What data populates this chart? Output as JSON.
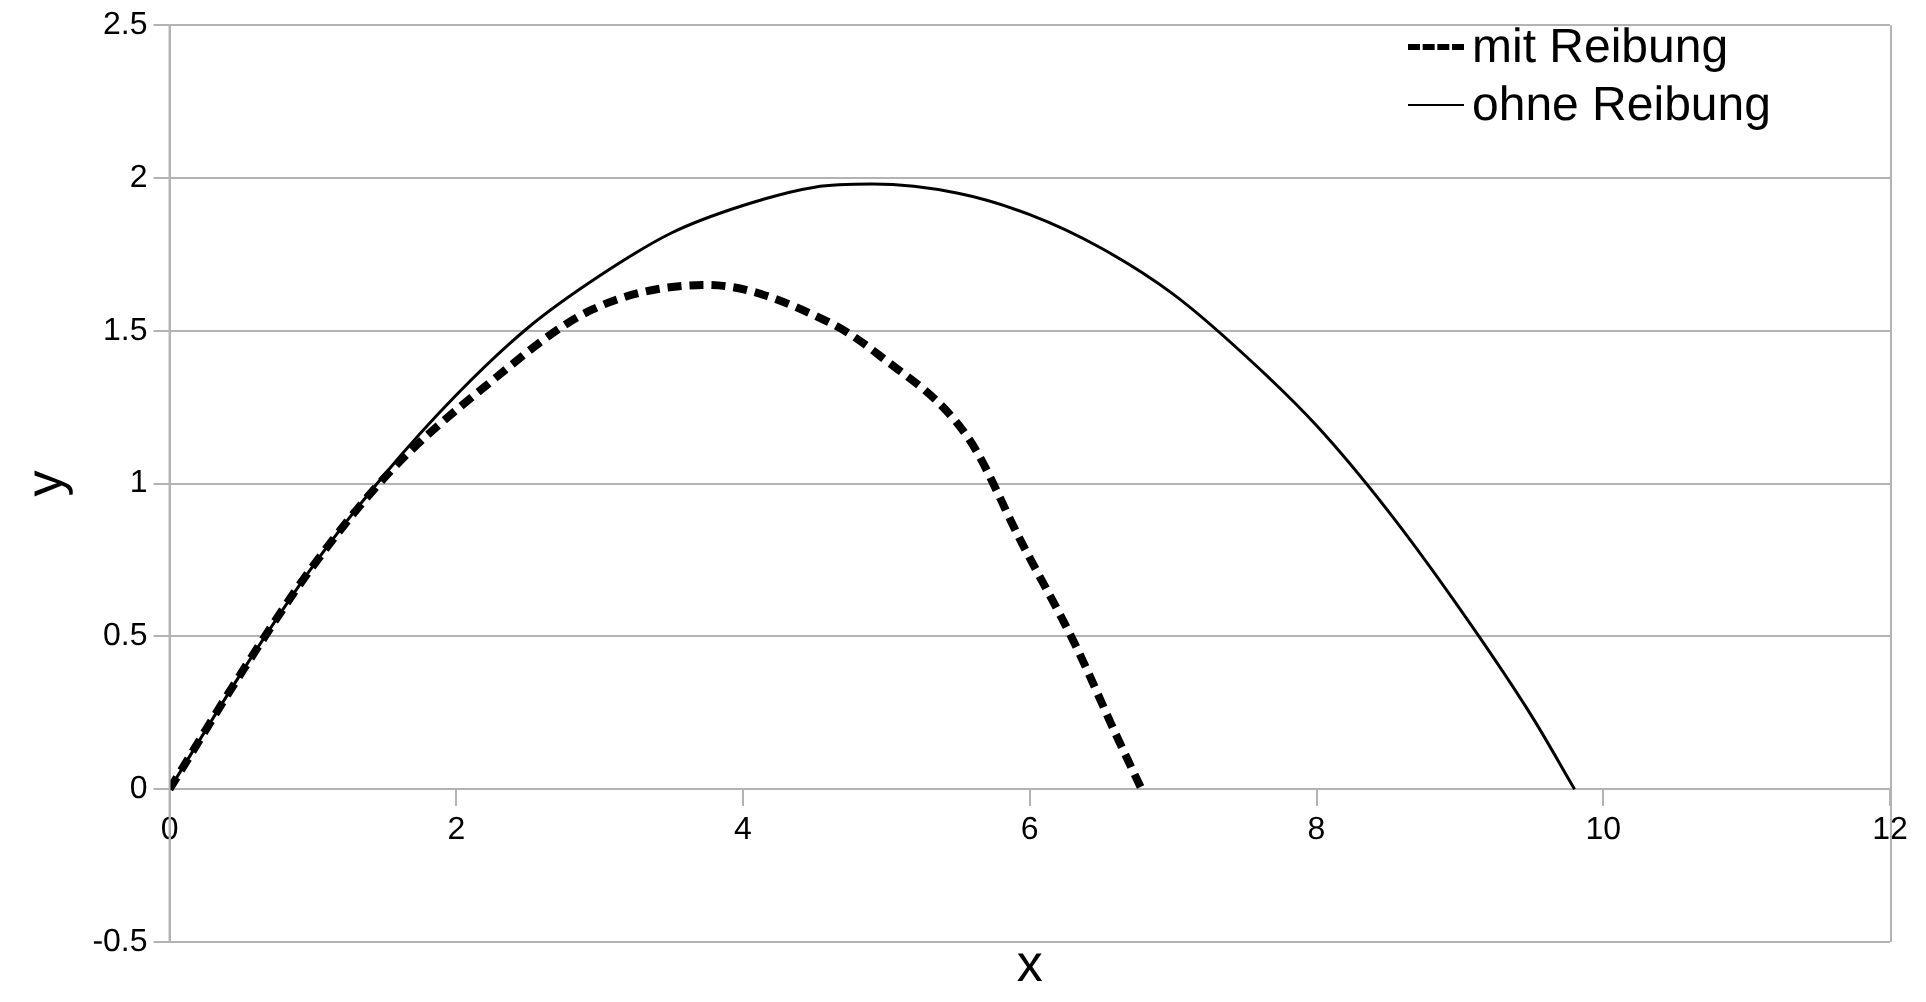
{
  "chart_data": {
    "type": "line",
    "xlabel": "x",
    "ylabel": "y",
    "xlim": [
      0,
      12
    ],
    "xticks": [
      0,
      2,
      4,
      6,
      8,
      10,
      12
    ],
    "ylim": [
      -0.5,
      2.5
    ],
    "yticks": [
      -0.5,
      0,
      0.5,
      1,
      1.5,
      2,
      2.5
    ],
    "grid": "y",
    "legend": "top right",
    "marker": "none",
    "series": [
      {
        "name": "mit Reibung",
        "color": "#000000",
        "line_style": "dashed",
        "x": [
          0,
          0.5,
          1,
          1.54,
          2.18,
          2.95,
          3.75,
          4.59,
          4.95,
          5.57,
          5.94,
          6.32,
          6.6,
          6.78
        ],
        "values": [
          0,
          0.38,
          0.73,
          1.04,
          1.31,
          1.57,
          1.65,
          1.53,
          1.42,
          1.15,
          0.81,
          0.47,
          0.18,
          0
        ]
      },
      {
        "name": "ohne Reibung",
        "color": "#000000",
        "line_style": "solid",
        "x": [
          0,
          0.5,
          1,
          1.5,
          2,
          2.5,
          3,
          3.5,
          4,
          4.5,
          4.9,
          5.5,
          6,
          6.5,
          7,
          7.5,
          8,
          8.5,
          9,
          9.5,
          9.8
        ],
        "values": [
          0,
          0.38,
          0.73,
          1.03,
          1.29,
          1.51,
          1.68,
          1.82,
          1.91,
          1.97,
          1.98,
          1.95,
          1.88,
          1.77,
          1.62,
          1.42,
          1.19,
          0.91,
          0.59,
          0.24,
          0
        ]
      }
    ]
  }
}
